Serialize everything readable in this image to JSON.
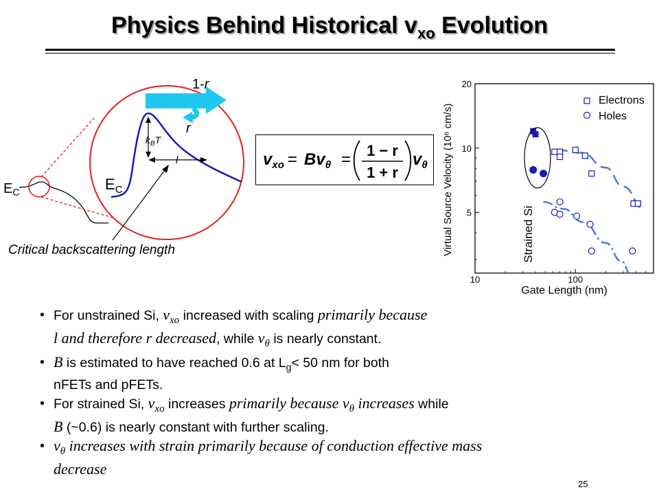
{
  "title": {
    "main": "Physics Behind Historical v",
    "sub": "xo",
    "end": " Evolution"
  },
  "diagram": {
    "ec_small": "E",
    "ec_small_sub": "C",
    "ec_large": "E",
    "ec_large_sub": "C",
    "transmit_label_1": "1-",
    "transmit_label_r": "r",
    "reflect_label": "r",
    "kbt_k": "k",
    "kbt_b": "B",
    "kbt_t": "T",
    "length_label": "l",
    "caption": "Critical backscattering length",
    "colors": {
      "band": "#1a1ab5",
      "circle": "#e02020",
      "arrow": "#1ec8f0"
    }
  },
  "equation": {
    "lhs_v": "v",
    "lhs_sub": "xo",
    "eq1": "=",
    "b": "B",
    "v": "v",
    "theta": "θ",
    "eq2": "=",
    "num": "1 − r",
    "den": "1 + r"
  },
  "chart_data": {
    "type": "scatter",
    "xlabel": "Gate Length (nm)",
    "ylabel": "Virtual Source Velocity (10⁶ cm/s)",
    "x_scale": "log",
    "y_scale": "log",
    "xlim": [
      10,
      600
    ],
    "ylim": [
      2.6,
      20
    ],
    "x_ticks": [
      "10",
      "100"
    ],
    "y_ticks": [
      "20",
      "10",
      "5"
    ],
    "legend": {
      "placement": "top-right",
      "entries": [
        "Electrons",
        "Holes"
      ]
    },
    "annotation": "Strained Si",
    "series": [
      {
        "name": "Electrons",
        "marker": "open-square",
        "points": [
          [
            62,
            9.6
          ],
          [
            70,
            9.6
          ],
          [
            70,
            9.1
          ],
          [
            100,
            9.8
          ],
          [
            125,
            9.2
          ],
          [
            145,
            7.6
          ],
          [
            380,
            5.5
          ],
          [
            420,
            5.5
          ]
        ]
      },
      {
        "name": "Holes",
        "marker": "open-circle",
        "points": [
          [
            62,
            5.0
          ],
          [
            70,
            5.6
          ],
          [
            70,
            4.9
          ],
          [
            103,
            4.8
          ],
          [
            140,
            4.4
          ],
          [
            145,
            3.3
          ],
          [
            370,
            3.3
          ]
        ]
      },
      {
        "name": "Strained Si electrons",
        "marker": "filled-square",
        "points": [
          [
            38,
            12.0
          ],
          [
            40,
            11.6
          ]
        ]
      },
      {
        "name": "Strained Si holes",
        "marker": "filled-circle",
        "points": [
          [
            38,
            7.9
          ],
          [
            48,
            7.6
          ]
        ]
      }
    ],
    "trend_lines": [
      {
        "series": "Electrons",
        "points": [
          [
            65,
            9.8
          ],
          [
            115,
            9.5
          ],
          [
            200,
            8.1
          ],
          [
            300,
            6.6
          ],
          [
            480,
            5.2
          ]
        ]
      },
      {
        "series": "Holes",
        "points": [
          [
            48,
            5.6
          ],
          [
            75,
            5.2
          ],
          [
            120,
            4.5
          ],
          [
            200,
            3.6
          ],
          [
            290,
            2.95
          ],
          [
            350,
            2.6
          ]
        ]
      }
    ]
  },
  "bullets": [
    {
      "parts": [
        {
          "t": "For unstrained Si, ",
          "s": "n"
        },
        {
          "t": "v",
          "s": "iv"
        },
        {
          "t": "xo",
          "s": "sub"
        },
        {
          "t": " increased with scaling ",
          "s": "n"
        },
        {
          "t": "primarily because",
          "s": "i"
        },
        {
          "t": "BR",
          "s": "br"
        },
        {
          "t": "l and therefore r decreased",
          "s": "i"
        },
        {
          "t": ", while ",
          "s": "n"
        },
        {
          "t": "v",
          "s": "iv"
        },
        {
          "t": "θ",
          "s": "sub"
        },
        {
          "t": " is nearly constant.",
          "s": "n"
        }
      ]
    },
    {
      "parts": [
        {
          "t": "B",
          "s": "i"
        },
        {
          "t": " is estimated to have reached 0.6 at L",
          "s": "n"
        },
        {
          "t": "g",
          "s": "sub"
        },
        {
          "t": "< 50 nm for both",
          "s": "n"
        },
        {
          "t": "BR",
          "s": "br"
        },
        {
          "t": "nFETs and pFETs.",
          "s": "n"
        }
      ]
    },
    {
      "parts": [
        {
          "t": "For strained Si, ",
          "s": "n"
        },
        {
          "t": "v",
          "s": "iv"
        },
        {
          "t": "xo",
          "s": "sub"
        },
        {
          "t": " increases ",
          "s": "n"
        },
        {
          "t": "primarily because v",
          "s": "i"
        },
        {
          "t": "θ",
          "s": "sub"
        },
        {
          "t": " increases",
          "s": "i"
        },
        {
          "t": " while",
          "s": "n"
        },
        {
          "t": "BR",
          "s": "br"
        },
        {
          "t": "B",
          "s": "i"
        },
        {
          "t": " (~0.6) is nearly constant with further scaling.",
          "s": "n"
        }
      ]
    },
    {
      "parts": [
        {
          "t": "v",
          "s": "i"
        },
        {
          "t": "θ",
          "s": "sub"
        },
        {
          "t": " increases with strain primarily because of conduction effective mass",
          "s": "i"
        },
        {
          "t": "BR",
          "s": "br"
        },
        {
          "t": "decrease",
          "s": "i"
        }
      ]
    }
  ],
  "page_number": "25"
}
